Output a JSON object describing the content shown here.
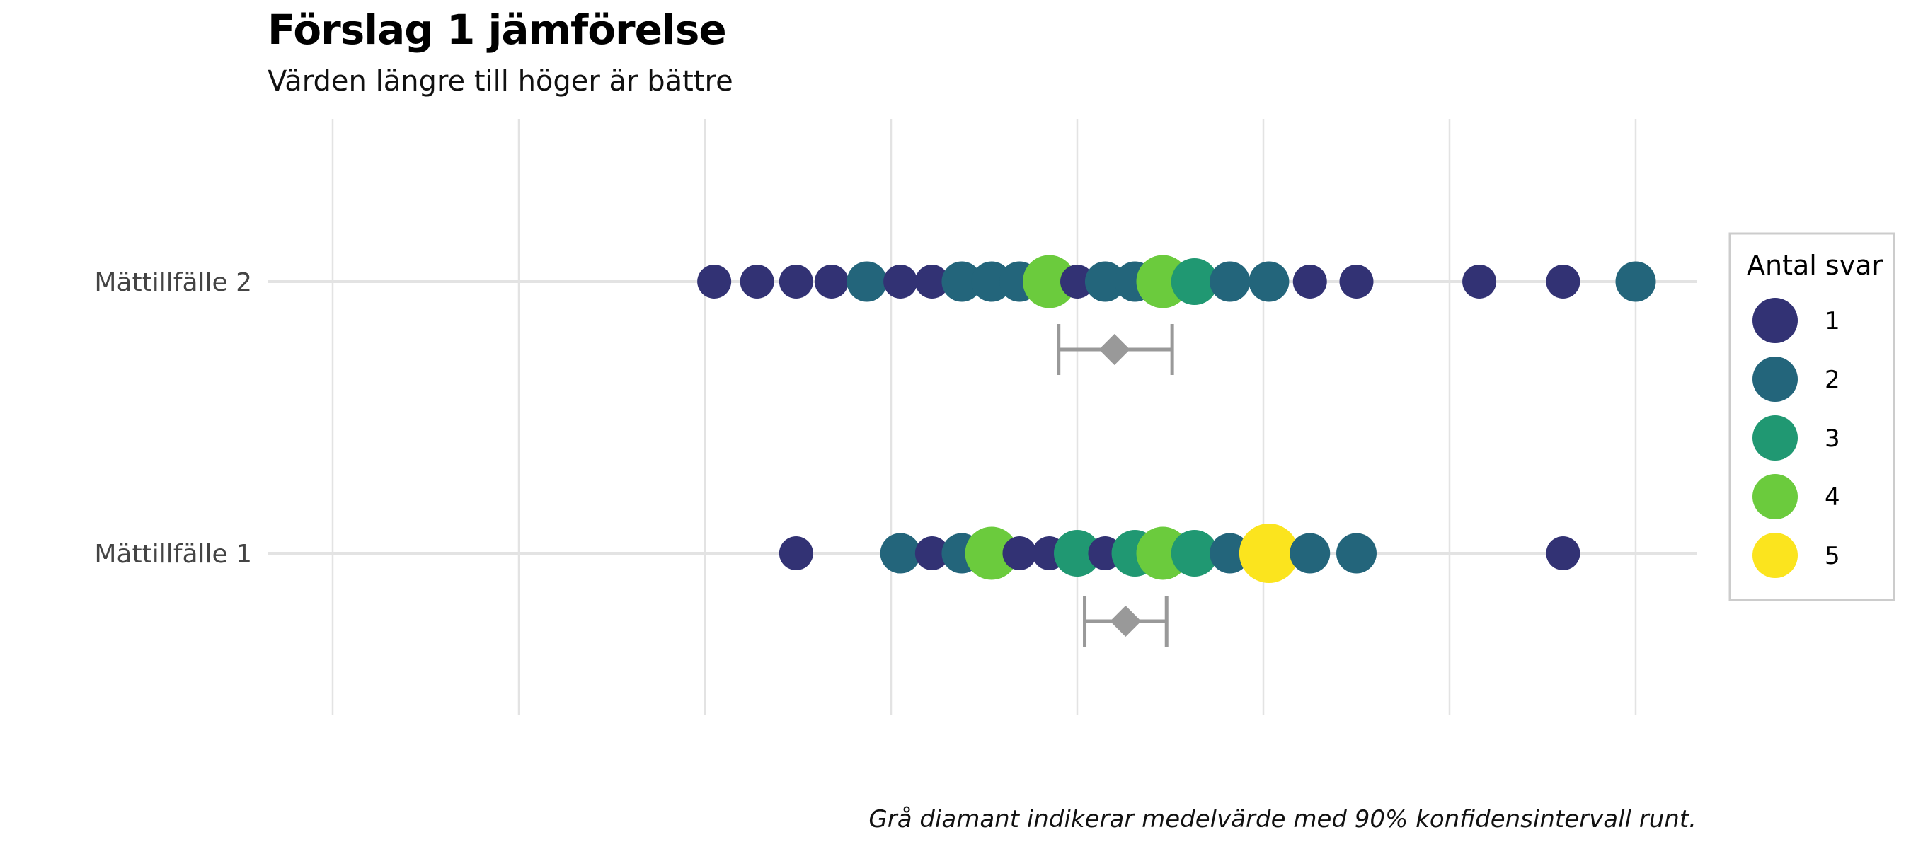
{
  "chart_data": {
    "type": "scatter",
    "title": "Förslag 1 jämförelse",
    "subtitle": "Värden längre till höger är bättre",
    "caption": "Grå diamant indikerar medelvärde med 90% konfidensintervall runt.",
    "xlabel": "",
    "ylabel": "",
    "xlim": [
      0,
      7.5
    ],
    "grid": true,
    "categories": [
      "Mättillfälle 2",
      "Mättillfälle 1"
    ],
    "legend": {
      "title": "Antal svar",
      "position": "right",
      "entries": [
        {
          "label": "1",
          "count": 1,
          "color": "#323274"
        },
        {
          "label": "2",
          "count": 2,
          "color": "#23657B"
        },
        {
          "label": "3",
          "count": 3,
          "color": "#209872"
        },
        {
          "label": "4",
          "count": 4,
          "color": "#6BCB3D"
        },
        {
          "label": "5",
          "count": 5,
          "color": "#FBE41E"
        }
      ]
    },
    "series": [
      {
        "category": "Mättillfälle 2",
        "points": [
          {
            "x": 2.05,
            "count": 1
          },
          {
            "x": 2.28,
            "count": 1
          },
          {
            "x": 2.49,
            "count": 1
          },
          {
            "x": 2.68,
            "count": 1
          },
          {
            "x": 2.87,
            "count": 2
          },
          {
            "x": 3.05,
            "count": 1
          },
          {
            "x": 3.22,
            "count": 1
          },
          {
            "x": 3.38,
            "count": 2
          },
          {
            "x": 3.54,
            "count": 2
          },
          {
            "x": 3.69,
            "count": 2
          },
          {
            "x": 3.85,
            "count": 4
          },
          {
            "x": 4.0,
            "count": 1
          },
          {
            "x": 4.15,
            "count": 2
          },
          {
            "x": 4.31,
            "count": 2
          },
          {
            "x": 4.46,
            "count": 4
          },
          {
            "x": 4.63,
            "count": 3
          },
          {
            "x": 4.82,
            "count": 2
          },
          {
            "x": 5.03,
            "count": 2
          },
          {
            "x": 5.25,
            "count": 1
          },
          {
            "x": 5.5,
            "count": 1
          },
          {
            "x": 6.16,
            "count": 1
          },
          {
            "x": 6.61,
            "count": 1
          },
          {
            "x": 7.0,
            "count": 2
          }
        ],
        "mean": 4.2,
        "ci": [
          3.9,
          4.51
        ]
      },
      {
        "category": "Mättillfälle 1",
        "points": [
          {
            "x": 2.49,
            "count": 1
          },
          {
            "x": 3.05,
            "count": 2
          },
          {
            "x": 3.22,
            "count": 1
          },
          {
            "x": 3.38,
            "count": 2
          },
          {
            "x": 3.54,
            "count": 4
          },
          {
            "x": 3.69,
            "count": 1
          },
          {
            "x": 3.85,
            "count": 1
          },
          {
            "x": 4.0,
            "count": 3
          },
          {
            "x": 4.15,
            "count": 1
          },
          {
            "x": 4.31,
            "count": 3
          },
          {
            "x": 4.46,
            "count": 4
          },
          {
            "x": 4.63,
            "count": 3
          },
          {
            "x": 4.82,
            "count": 2
          },
          {
            "x": 5.03,
            "count": 5
          },
          {
            "x": 5.25,
            "count": 2
          },
          {
            "x": 5.5,
            "count": 2
          },
          {
            "x": 6.61,
            "count": 1
          }
        ],
        "mean": 4.26,
        "ci": [
          4.04,
          4.48
        ]
      }
    ]
  }
}
